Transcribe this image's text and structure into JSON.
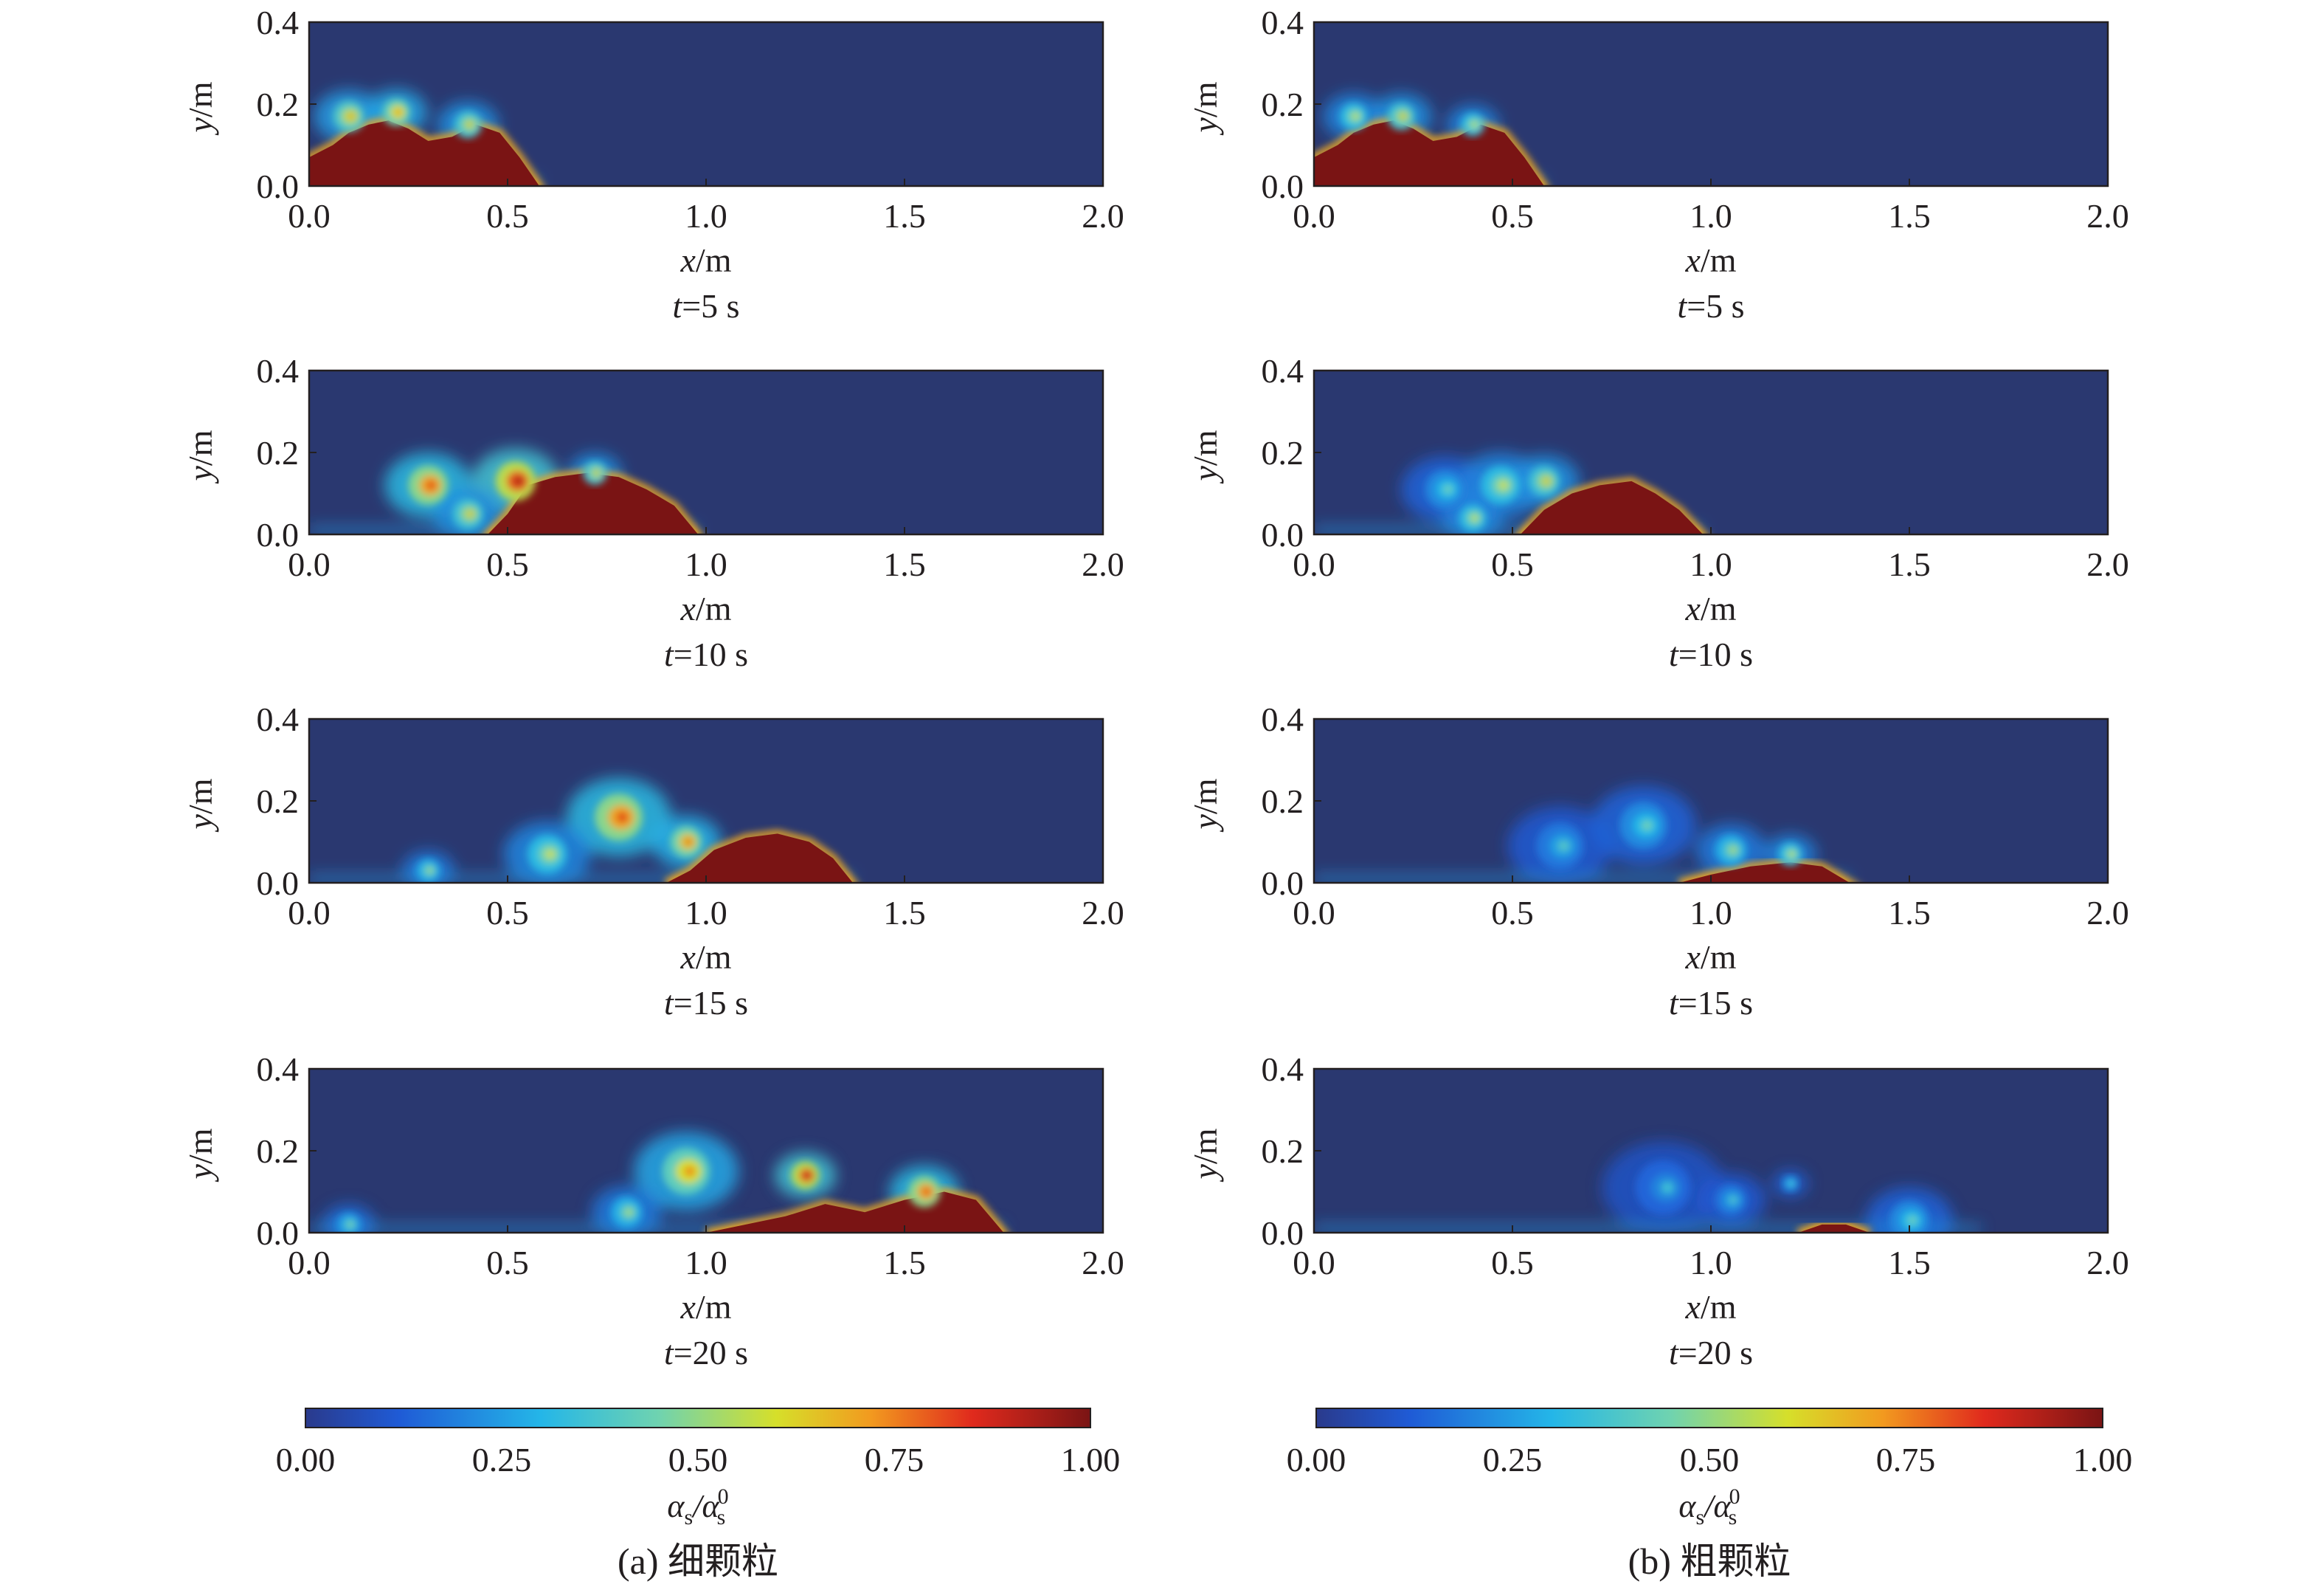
{
  "figure": {
    "panels": [
      {
        "caption": "(a) 细颗粒",
        "colorbar_label": "α_s/α_s^0"
      },
      {
        "caption": "(b) 粗颗粒",
        "colorbar_label": "α_s/α_s^0"
      }
    ],
    "colorbar_label_parts": {
      "main": "α",
      "sub": "s",
      "sep": "/",
      "sup": "0"
    }
  },
  "chart_data": [
    {
      "type": "heatmap",
      "panel": "(a) 细颗粒",
      "title": "t=5 s",
      "title_parts": {
        "var": "t",
        "rest": "=5 s"
      },
      "xlabel": "x/m",
      "xlabel_parts": {
        "var": "x",
        "unit": "/m"
      },
      "ylabel": "y/m",
      "ylabel_parts": {
        "var": "y",
        "unit": "/m"
      },
      "xlim": [
        0.0,
        2.0
      ],
      "ylim": [
        0.0,
        0.4
      ],
      "xticks": [
        "0.0",
        "0.5",
        "1.0",
        "1.5",
        "2.0"
      ],
      "yticks": [
        "0.0",
        "0.2",
        "0.4"
      ],
      "colorscale": "jet",
      "clim": [
        0.0,
        1.0
      ],
      "front_position": 0.58,
      "current_height": 0.2,
      "dense_core": [
        [
          0.0,
          0.07
        ],
        [
          0.06,
          0.1
        ],
        [
          0.1,
          0.13
        ],
        [
          0.15,
          0.15
        ],
        [
          0.2,
          0.16
        ],
        [
          0.25,
          0.14
        ],
        [
          0.3,
          0.11
        ],
        [
          0.36,
          0.12
        ],
        [
          0.42,
          0.15
        ],
        [
          0.48,
          0.13
        ],
        [
          0.53,
          0.07
        ],
        [
          0.58,
          0.0
        ]
      ],
      "vortices": [
        {
          "x": 0.1,
          "y": 0.17,
          "r": 0.04,
          "level": 0.55
        },
        {
          "x": 0.22,
          "y": 0.18,
          "r": 0.035,
          "level": 0.6
        },
        {
          "x": 0.4,
          "y": 0.15,
          "r": 0.035,
          "level": 0.5
        }
      ]
    },
    {
      "type": "heatmap",
      "panel": "(b) 粗颗粒",
      "title": "t=5 s",
      "title_parts": {
        "var": "t",
        "rest": "=5 s"
      },
      "xlabel": "x/m",
      "xlabel_parts": {
        "var": "x",
        "unit": "/m"
      },
      "ylabel": "y/m",
      "ylabel_parts": {
        "var": "y",
        "unit": "/m"
      },
      "xlim": [
        0.0,
        2.0
      ],
      "ylim": [
        0.0,
        0.4
      ],
      "xticks": [
        "0.0",
        "0.5",
        "1.0",
        "1.5",
        "2.0"
      ],
      "yticks": [
        "0.0",
        "0.2",
        "0.4"
      ],
      "colorscale": "jet",
      "clim": [
        0.0,
        1.0
      ],
      "front_position": 0.58,
      "current_height": 0.19,
      "dense_core": [
        [
          0.0,
          0.07
        ],
        [
          0.06,
          0.1
        ],
        [
          0.1,
          0.13
        ],
        [
          0.15,
          0.15
        ],
        [
          0.2,
          0.16
        ],
        [
          0.25,
          0.14
        ],
        [
          0.3,
          0.11
        ],
        [
          0.36,
          0.12
        ],
        [
          0.42,
          0.15
        ],
        [
          0.48,
          0.13
        ],
        [
          0.53,
          0.07
        ],
        [
          0.58,
          0.0
        ]
      ],
      "vortices": [
        {
          "x": 0.1,
          "y": 0.17,
          "r": 0.035,
          "level": 0.45
        },
        {
          "x": 0.22,
          "y": 0.17,
          "r": 0.035,
          "level": 0.5
        },
        {
          "x": 0.4,
          "y": 0.15,
          "r": 0.03,
          "level": 0.45
        }
      ]
    },
    {
      "type": "heatmap",
      "panel": "(a) 细颗粒",
      "title": "t=10 s",
      "title_parts": {
        "var": "t",
        "rest": "=10 s"
      },
      "xlabel": "x/m",
      "xlabel_parts": {
        "var": "x",
        "unit": "/m"
      },
      "ylabel": "y/m",
      "ylabel_parts": {
        "var": "y",
        "unit": "/m"
      },
      "xlim": [
        0.0,
        2.0
      ],
      "ylim": [
        0.0,
        0.4
      ],
      "xticks": [
        "0.0",
        "0.5",
        "1.0",
        "1.5",
        "2.0"
      ],
      "yticks": [
        "0.0",
        "0.2",
        "0.4"
      ],
      "colorscale": "jet",
      "clim": [
        0.0,
        1.0
      ],
      "front_position": 0.98,
      "current_height": 0.17,
      "dense_core": [
        [
          0.45,
          0.0
        ],
        [
          0.5,
          0.05
        ],
        [
          0.55,
          0.12
        ],
        [
          0.62,
          0.14
        ],
        [
          0.7,
          0.15
        ],
        [
          0.78,
          0.14
        ],
        [
          0.85,
          0.11
        ],
        [
          0.92,
          0.07
        ],
        [
          0.98,
          0.0
        ]
      ],
      "vortices": [
        {
          "x": 0.3,
          "y": 0.12,
          "r": 0.05,
          "level": 0.7
        },
        {
          "x": 0.52,
          "y": 0.13,
          "r": 0.05,
          "level": 0.8
        },
        {
          "x": 0.4,
          "y": 0.05,
          "r": 0.04,
          "level": 0.5
        },
        {
          "x": 0.72,
          "y": 0.15,
          "r": 0.03,
          "level": 0.5
        }
      ]
    },
    {
      "type": "heatmap",
      "panel": "(b) 粗颗粒",
      "title": "t=10 s",
      "title_parts": {
        "var": "t",
        "rest": "=10 s"
      },
      "xlabel": "x/m",
      "xlabel_parts": {
        "var": "x",
        "unit": "/m"
      },
      "ylabel": "y/m",
      "ylabel_parts": {
        "var": "y",
        "unit": "/m"
      },
      "xlim": [
        0.0,
        2.0
      ],
      "ylim": [
        0.0,
        0.4
      ],
      "xticks": [
        "0.0",
        "0.5",
        "1.0",
        "1.5",
        "2.0"
      ],
      "yticks": [
        "0.0",
        "0.2",
        "0.4"
      ],
      "colorscale": "jet",
      "clim": [
        0.0,
        1.0
      ],
      "front_position": 0.98,
      "current_height": 0.17,
      "dense_core": [
        [
          0.52,
          0.0
        ],
        [
          0.58,
          0.06
        ],
        [
          0.65,
          0.1
        ],
        [
          0.72,
          0.12
        ],
        [
          0.8,
          0.13
        ],
        [
          0.86,
          0.1
        ],
        [
          0.92,
          0.06
        ],
        [
          0.98,
          0.0
        ]
      ],
      "vortices": [
        {
          "x": 0.33,
          "y": 0.11,
          "r": 0.05,
          "level": 0.3
        },
        {
          "x": 0.47,
          "y": 0.12,
          "r": 0.05,
          "level": 0.45
        },
        {
          "x": 0.58,
          "y": 0.13,
          "r": 0.04,
          "level": 0.5
        },
        {
          "x": 0.4,
          "y": 0.04,
          "r": 0.035,
          "level": 0.45
        }
      ]
    },
    {
      "type": "heatmap",
      "panel": "(a) 细颗粒",
      "title": "t=15 s",
      "title_parts": {
        "var": "t",
        "rest": "=15 s"
      },
      "xlabel": "x/m",
      "xlabel_parts": {
        "var": "x",
        "unit": "/m"
      },
      "ylabel": "y/m",
      "ylabel_parts": {
        "var": "y",
        "unit": "/m"
      },
      "xlim": [
        0.0,
        2.0
      ],
      "ylim": [
        0.0,
        0.4
      ],
      "xticks": [
        "0.0",
        "0.5",
        "1.0",
        "1.5",
        "2.0"
      ],
      "yticks": [
        "0.0",
        "0.2",
        "0.4"
      ],
      "colorscale": "jet",
      "clim": [
        0.0,
        1.0
      ],
      "front_position": 1.37,
      "current_height": 0.2,
      "dense_core": [
        [
          0.9,
          0.0
        ],
        [
          0.96,
          0.03
        ],
        [
          1.02,
          0.08
        ],
        [
          1.1,
          0.11
        ],
        [
          1.18,
          0.12
        ],
        [
          1.26,
          0.1
        ],
        [
          1.32,
          0.06
        ],
        [
          1.37,
          0.0
        ]
      ],
      "vortices": [
        {
          "x": 0.78,
          "y": 0.16,
          "r": 0.06,
          "level": 0.7
        },
        {
          "x": 0.6,
          "y": 0.07,
          "r": 0.05,
          "level": 0.45
        },
        {
          "x": 0.95,
          "y": 0.1,
          "r": 0.04,
          "level": 0.65
        },
        {
          "x": 0.3,
          "y": 0.03,
          "r": 0.03,
          "level": 0.4
        }
      ]
    },
    {
      "type": "heatmap",
      "panel": "(b) 粗颗粒",
      "title": "t=15 s",
      "title_parts": {
        "var": "t",
        "rest": "=15 s"
      },
      "xlabel": "x/m",
      "xlabel_parts": {
        "var": "x",
        "unit": "/m"
      },
      "ylabel": "y/m",
      "ylabel_parts": {
        "var": "y",
        "unit": "/m"
      },
      "xlim": [
        0.0,
        2.0
      ],
      "ylim": [
        0.0,
        0.4
      ],
      "xticks": [
        "0.0",
        "0.5",
        "1.0",
        "1.5",
        "2.0"
      ],
      "yticks": [
        "0.0",
        "0.2",
        "0.4"
      ],
      "colorscale": "jet",
      "clim": [
        0.0,
        1.0
      ],
      "front_position": 1.35,
      "current_height": 0.19,
      "dense_core": [
        [
          0.92,
          0.0
        ],
        [
          1.0,
          0.02
        ],
        [
          1.1,
          0.04
        ],
        [
          1.2,
          0.05
        ],
        [
          1.28,
          0.04
        ],
        [
          1.35,
          0.0
        ]
      ],
      "vortices": [
        {
          "x": 0.62,
          "y": 0.09,
          "r": 0.06,
          "level": 0.25
        },
        {
          "x": 0.83,
          "y": 0.14,
          "r": 0.06,
          "level": 0.3
        },
        {
          "x": 1.05,
          "y": 0.08,
          "r": 0.04,
          "level": 0.4
        },
        {
          "x": 1.2,
          "y": 0.07,
          "r": 0.03,
          "level": 0.45
        }
      ]
    },
    {
      "type": "heatmap",
      "panel": "(a) 细颗粒",
      "title": "t=20 s",
      "title_parts": {
        "var": "t",
        "rest": "=20 s"
      },
      "xlabel": "x/m",
      "xlabel_parts": {
        "var": "x",
        "unit": "/m"
      },
      "ylabel": "y/m",
      "ylabel_parts": {
        "var": "y",
        "unit": "/m"
      },
      "xlim": [
        0.0,
        2.0
      ],
      "ylim": [
        0.0,
        0.4
      ],
      "xticks": [
        "0.0",
        "0.5",
        "1.0",
        "1.5",
        "2.0"
      ],
      "yticks": [
        "0.0",
        "0.2",
        "0.4"
      ],
      "colorscale": "jet",
      "clim": [
        0.0,
        1.0
      ],
      "front_position": 1.75,
      "current_height": 0.2,
      "dense_core": [
        [
          1.0,
          0.0
        ],
        [
          1.1,
          0.02
        ],
        [
          1.2,
          0.04
        ],
        [
          1.3,
          0.07
        ],
        [
          1.4,
          0.05
        ],
        [
          1.5,
          0.08
        ],
        [
          1.6,
          0.1
        ],
        [
          1.68,
          0.08
        ],
        [
          1.75,
          0.0
        ]
      ],
      "vortices": [
        {
          "x": 0.95,
          "y": 0.15,
          "r": 0.06,
          "level": 0.6
        },
        {
          "x": 1.25,
          "y": 0.14,
          "r": 0.035,
          "level": 0.8
        },
        {
          "x": 1.55,
          "y": 0.1,
          "r": 0.04,
          "level": 0.7
        },
        {
          "x": 0.8,
          "y": 0.05,
          "r": 0.04,
          "level": 0.4
        },
        {
          "x": 0.1,
          "y": 0.02,
          "r": 0.03,
          "level": 0.35
        }
      ]
    },
    {
      "type": "heatmap",
      "panel": "(b) 粗颗粒",
      "title": "t=20 s",
      "title_parts": {
        "var": "t",
        "rest": "=20 s"
      },
      "xlabel": "x/m",
      "xlabel_parts": {
        "var": "x",
        "unit": "/m"
      },
      "ylabel": "y/m",
      "ylabel_parts": {
        "var": "y",
        "unit": "/m"
      },
      "xlim": [
        0.0,
        2.0
      ],
      "ylim": [
        0.0,
        0.4
      ],
      "xticks": [
        "0.0",
        "0.5",
        "1.0",
        "1.5",
        "2.0"
      ],
      "yticks": [
        "0.0",
        "0.2",
        "0.4"
      ],
      "colorscale": "jet",
      "clim": [
        0.0,
        1.0
      ],
      "front_position": 1.68,
      "current_height": 0.2,
      "dense_core": [
        [
          1.22,
          0.0
        ],
        [
          1.28,
          0.02
        ],
        [
          1.34,
          0.02
        ],
        [
          1.4,
          0.0
        ]
      ],
      "vortices": [
        {
          "x": 0.88,
          "y": 0.11,
          "r": 0.07,
          "level": 0.2
        },
        {
          "x": 1.05,
          "y": 0.08,
          "r": 0.04,
          "level": 0.25
        },
        {
          "x": 1.2,
          "y": 0.12,
          "r": 0.02,
          "level": 0.3
        },
        {
          "x": 1.5,
          "y": 0.03,
          "r": 0.05,
          "level": 0.3
        }
      ]
    }
  ],
  "colorbar": {
    "ticks": [
      "0.00",
      "0.25",
      "0.50",
      "0.75",
      "1.00"
    ],
    "stops": [
      {
        "offset": 0.0,
        "color": "#2a3a8c"
      },
      {
        "offset": 0.12,
        "color": "#1f5bd6"
      },
      {
        "offset": 0.3,
        "color": "#24b6e8"
      },
      {
        "offset": 0.45,
        "color": "#6fd3b0"
      },
      {
        "offset": 0.6,
        "color": "#d6df2a"
      },
      {
        "offset": 0.72,
        "color": "#f29a1f"
      },
      {
        "offset": 0.85,
        "color": "#e02a1d"
      },
      {
        "offset": 1.0,
        "color": "#7a1414"
      }
    ]
  },
  "colors": {
    "background_field": "#2a3870",
    "dense_core": "#7a1414",
    "axis": "#231f20"
  }
}
